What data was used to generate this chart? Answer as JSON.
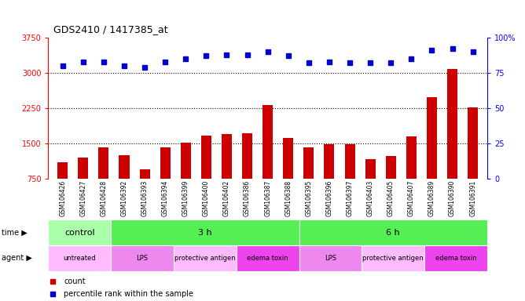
{
  "title": "GDS2410 / 1417385_at",
  "samples": [
    "GSM106426",
    "GSM106427",
    "GSM106428",
    "GSM106392",
    "GSM106393",
    "GSM106394",
    "GSM106399",
    "GSM106400",
    "GSM106402",
    "GSM106386",
    "GSM106387",
    "GSM106388",
    "GSM106395",
    "GSM106396",
    "GSM106397",
    "GSM106403",
    "GSM106405",
    "GSM106407",
    "GSM106389",
    "GSM106390",
    "GSM106391"
  ],
  "counts": [
    1100,
    1200,
    1420,
    1250,
    950,
    1420,
    1530,
    1680,
    1700,
    1720,
    2320,
    1620,
    1430,
    1490,
    1490,
    1180,
    1240,
    1650,
    2480,
    3080,
    2270
  ],
  "percentile_ranks": [
    80,
    83,
    83,
    80,
    79,
    83,
    85,
    87,
    88,
    88,
    90,
    87,
    82,
    83,
    82,
    82,
    82,
    85,
    91,
    92,
    90
  ],
  "ylim_left": [
    750,
    3750
  ],
  "ylim_right": [
    0,
    100
  ],
  "yticks_left": [
    750,
    1500,
    2250,
    3000,
    3750
  ],
  "yticks_right": [
    0,
    25,
    50,
    75,
    100
  ],
  "bar_color": "#cc0000",
  "dot_color": "#0000cc",
  "time_groups": [
    {
      "label": "control",
      "start": 0,
      "end": 3,
      "color": "#aaffaa"
    },
    {
      "label": "3 h",
      "start": 3,
      "end": 12,
      "color": "#55ee55"
    },
    {
      "label": "6 h",
      "start": 12,
      "end": 21,
      "color": "#55ee55"
    }
  ],
  "agent_groups": [
    {
      "label": "untreated",
      "start": 0,
      "end": 3,
      "color": "#ffbbff"
    },
    {
      "label": "LPS",
      "start": 3,
      "end": 6,
      "color": "#ee88ee"
    },
    {
      "label": "protective antigen",
      "start": 6,
      "end": 9,
      "color": "#ffbbff"
    },
    {
      "label": "edema toxin",
      "start": 9,
      "end": 12,
      "color": "#ee44ee"
    },
    {
      "label": "LPS",
      "start": 12,
      "end": 15,
      "color": "#ee88ee"
    },
    {
      "label": "protective antigen",
      "start": 15,
      "end": 18,
      "color": "#ffbbff"
    },
    {
      "label": "edema toxin",
      "start": 18,
      "end": 21,
      "color": "#ee44ee"
    }
  ],
  "chart_bg": "#ffffff",
  "xlab_bg": "#d8d8d8",
  "dotted_lines": [
    1500,
    2250,
    3000
  ]
}
